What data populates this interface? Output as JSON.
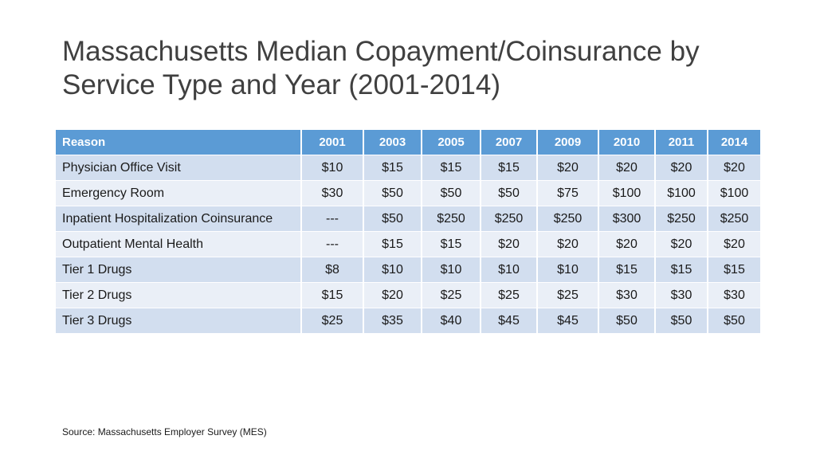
{
  "title": {
    "line1": "Massachusetts Median Copayment/Coinsurance by",
    "line2": "Service Type and Year (2001-2014)"
  },
  "table": {
    "headers": [
      "Reason",
      "2001",
      "2003",
      "2005",
      "2007",
      "2009",
      "2010",
      "2011",
      "2014"
    ],
    "rows": [
      [
        "Physician Office Visit",
        "$10",
        "$15",
        "$15",
        "$15",
        "$20",
        "$20",
        "$20",
        "$20"
      ],
      [
        "Emergency Room",
        "$30",
        "$50",
        "$50",
        "$50",
        "$75",
        "$100",
        "$100",
        "$100"
      ],
      [
        "Inpatient Hospitalization Coinsurance",
        "---",
        "$50",
        "$250",
        "$250",
        "$250",
        "$300",
        "$250",
        "$250"
      ],
      [
        "Outpatient Mental Health",
        "---",
        "$15",
        "$15",
        "$20",
        "$20",
        "$20",
        "$20",
        "$20"
      ],
      [
        "Tier 1 Drugs",
        "$8",
        "$10",
        "$10",
        "$10",
        "$10",
        "$15",
        "$15",
        "$15"
      ],
      [
        "Tier 2 Drugs",
        "$15",
        "$20",
        "$25",
        "$25",
        "$25",
        "$30",
        "$30",
        "$30"
      ],
      [
        "Tier 3 Drugs",
        "$25",
        "$35",
        "$40",
        "$45",
        "$45",
        "$50",
        "$50",
        "$50"
      ]
    ]
  },
  "source": "Source: Massachusetts Employer Survey (MES)",
  "colors": {
    "header_bg": "#5b9bd5",
    "row_odd": "#d2deef",
    "row_even": "#eaeff7",
    "title_text": "#404040"
  }
}
